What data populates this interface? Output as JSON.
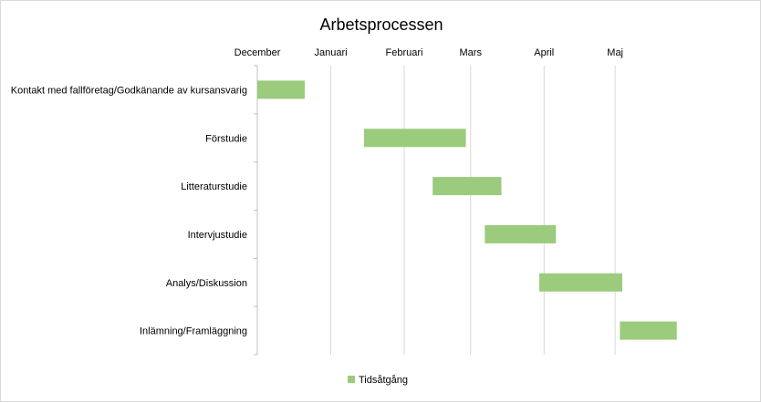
{
  "chart_data": {
    "type": "bar",
    "orientation": "horizontal",
    "title": "Arbetsprocessen",
    "x_axis": {
      "position": "top",
      "tick_labels": [
        "December",
        "Januari",
        "Februari",
        "Mars",
        "April",
        "Maj"
      ],
      "range": [
        "2018-12-01",
        "2019-06-25"
      ],
      "ticks": [
        "2018-12-01",
        "2019-01-01",
        "2019-02-01",
        "2019-03-01",
        "2019-04-01",
        "2019-05-01"
      ],
      "grid": true
    },
    "categories": [
      "Kontakt med fallföretag/Godkänande av kursansvarig",
      "Förstudie",
      "Litteraturstudie",
      "Intervjustudie",
      "Analys/Diskussion",
      "Inlämning/Framläggning"
    ],
    "series": [
      {
        "name": "Tidsåtgång",
        "color": "#9bcb7c",
        "tasks": [
          {
            "start": "2018-12-01",
            "end": "2018-12-21"
          },
          {
            "start": "2019-01-15",
            "end": "2019-02-27"
          },
          {
            "start": "2019-02-13",
            "end": "2019-03-14"
          },
          {
            "start": "2019-03-07",
            "end": "2019-04-06"
          },
          {
            "start": "2019-03-30",
            "end": "2019-05-04"
          },
          {
            "start": "2019-05-03",
            "end": "2019-05-27"
          }
        ]
      }
    ],
    "legend": {
      "position": "bottom",
      "entries": [
        "Tidsåtgång"
      ]
    },
    "colors": {
      "gridline": "#d9d9d9",
      "axis": "#bfbfbf",
      "bar": "#9bcb7c"
    }
  }
}
